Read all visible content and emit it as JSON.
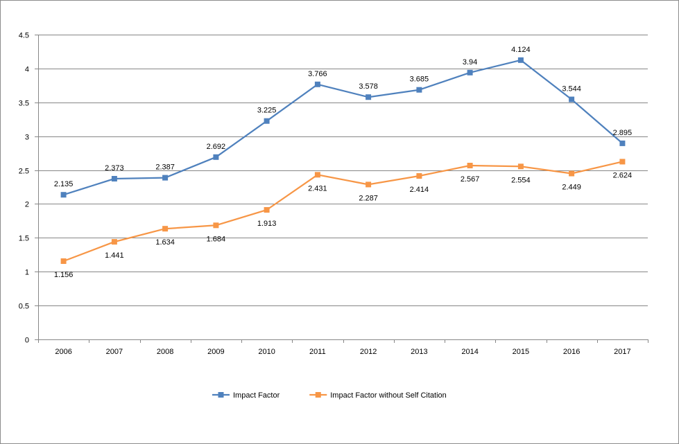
{
  "chart_data": {
    "type": "line",
    "categories": [
      "2006",
      "2007",
      "2008",
      "2009",
      "2010",
      "2011",
      "2012",
      "2013",
      "2014",
      "2015",
      "2016",
      "2017"
    ],
    "series": [
      {
        "name": "Impact Factor",
        "color": "#4f81bd",
        "marker": "square",
        "values": [
          2.135,
          2.373,
          2.387,
          2.692,
          3.225,
          3.766,
          3.578,
          3.685,
          3.94,
          4.124,
          3.544,
          2.895
        ],
        "labels": [
          "2.135",
          "2.373",
          "2.387",
          "2.692",
          "3.225",
          "3.766",
          "3.578",
          "3.685",
          "3.94",
          "4.124",
          "3.544",
          "2.895"
        ],
        "label_position": "above"
      },
      {
        "name": "Impact Factor without Self Citation",
        "color": "#f79646",
        "marker": "square",
        "values": [
          1.156,
          1.441,
          1.634,
          1.684,
          1.913,
          2.431,
          2.287,
          2.414,
          2.567,
          2.554,
          2.449,
          2.624
        ],
        "labels": [
          "1.156",
          "1.441",
          "1.634",
          "1.684",
          "1.913",
          "2.431",
          "2.287",
          "2.414",
          "2.567",
          "2.554",
          "2.449",
          "2.624"
        ],
        "label_position": "below"
      }
    ],
    "ylim": [
      0,
      4.5
    ],
    "yticks": [
      "0",
      "0.5",
      "1",
      "1.5",
      "2",
      "2.5",
      "3",
      "3.5",
      "4",
      "4.5"
    ],
    "title": "",
    "xlabel": "",
    "ylabel": "",
    "grid": "horizontal",
    "legend": "bottom"
  }
}
